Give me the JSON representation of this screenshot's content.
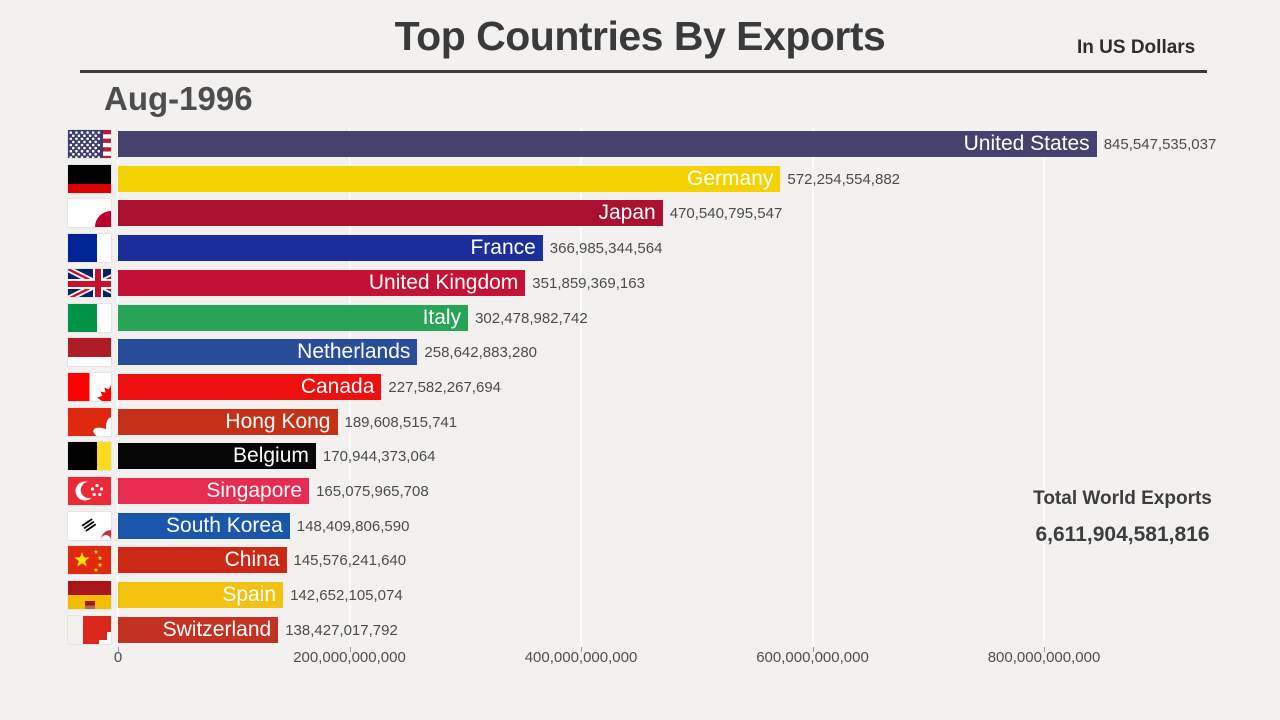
{
  "header": {
    "title": "Top Countries By Exports",
    "subtitle": "In US Dollars",
    "date_label": "Aug-1996"
  },
  "total": {
    "label": "Total World Exports",
    "value_label": "6,611,904,581,816",
    "value": 6611904581816
  },
  "chart_data": {
    "type": "bar",
    "orientation": "horizontal",
    "title": "Top Countries By Exports",
    "subtitle": "In US Dollars",
    "frame_label": "Aug-1996",
    "xlim": [
      0,
      943000000000
    ],
    "grid": true,
    "x_ticks": {
      "values": [
        0,
        200000000000,
        400000000000,
        600000000000,
        800000000000
      ],
      "labels": [
        "0",
        "200,000,000,000",
        "400,000,000,000",
        "600,000,000,000",
        "800,000,000,000"
      ]
    },
    "categories": [
      "United States",
      "Germany",
      "Japan",
      "France",
      "United Kingdom",
      "Italy",
      "Netherlands",
      "Canada",
      "Hong Kong",
      "Belgium",
      "Singapore",
      "South Korea",
      "China",
      "Spain",
      "Switzerland"
    ],
    "values": [
      845547535037,
      572254554882,
      470540795547,
      366985344564,
      351859369163,
      302478982742,
      258642883280,
      227582267694,
      189608515741,
      170944373064,
      165075965708,
      148409806590,
      145576241640,
      142652105074,
      138427017792
    ],
    "value_labels": [
      "845,547,535,037",
      "572,254,554,882",
      "470,540,795,547",
      "366,985,344,564",
      "351,859,369,163",
      "302,478,982,742",
      "258,642,883,280",
      "227,582,267,694",
      "189,608,515,741",
      "170,944,373,064",
      "165,075,965,708",
      "148,409,806,590",
      "145,576,241,640",
      "142,652,105,074",
      "138,427,017,792"
    ],
    "bar_colors": [
      "#46426e",
      "#f4d300",
      "#aa1030",
      "#1c2d9c",
      "#c41236",
      "#28a457",
      "#2a4d9b",
      "#ee0f0f",
      "#c53118",
      "#060606",
      "#e82b50",
      "#1a57ac",
      "#cc2817",
      "#f3c211",
      "#c33123"
    ],
    "flags": [
      "us",
      "de",
      "jp",
      "fr",
      "gb",
      "it",
      "nl",
      "ca",
      "hk",
      "be",
      "sg",
      "kr",
      "cn",
      "es",
      "ch"
    ]
  }
}
